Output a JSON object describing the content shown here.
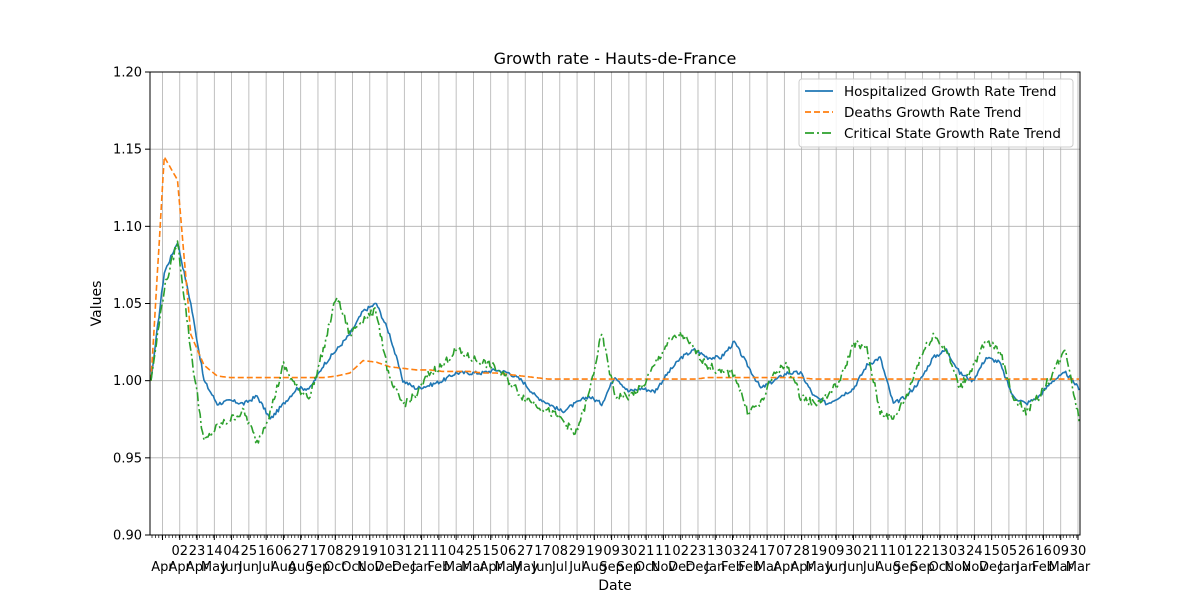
{
  "chart_data": {
    "type": "line",
    "title": "Growth rate - Hauts-de-France",
    "xlabel": "Date",
    "ylabel": "Values",
    "ylim": [
      0.9,
      1.2
    ],
    "yticks": [
      "0.90",
      "0.95",
      "1.00",
      "1.05",
      "1.10",
      "1.15",
      "1.20"
    ],
    "grid": true,
    "legend_position": "top-right",
    "x_tick_labels": [
      [
        "",
        "Apr"
      ],
      [
        "02",
        "Apr"
      ],
      [
        "23",
        "Apr"
      ],
      [
        "14",
        "May"
      ],
      [
        "04",
        "Jun"
      ],
      [
        "25",
        "Jun"
      ],
      [
        "16",
        "Jul"
      ],
      [
        "06",
        "Aug"
      ],
      [
        "27",
        "Aug"
      ],
      [
        "17",
        "Sep"
      ],
      [
        "08",
        "Oct"
      ],
      [
        "29",
        "Oct"
      ],
      [
        "19",
        "Nov"
      ],
      [
        "10",
        "Dec"
      ],
      [
        "31",
        "Dec"
      ],
      [
        "21",
        "Jan"
      ],
      [
        "11",
        "Feb"
      ],
      [
        "04",
        "Mar"
      ],
      [
        "25",
        "Mar"
      ],
      [
        "15",
        "Apr"
      ],
      [
        "06",
        "May"
      ],
      [
        "27",
        "May"
      ],
      [
        "17",
        "Jun"
      ],
      [
        "08",
        "Jul"
      ],
      [
        "29",
        "Jul"
      ],
      [
        "19",
        "Aug"
      ],
      [
        "09",
        "Sep"
      ],
      [
        "30",
        "Sep"
      ],
      [
        "21",
        "Oct"
      ],
      [
        "11",
        "Nov"
      ],
      [
        "02",
        "Dec"
      ],
      [
        "23",
        "Dec"
      ],
      [
        "13",
        "Jan"
      ],
      [
        "03",
        "Feb"
      ],
      [
        "24",
        "Feb"
      ],
      [
        "17",
        "Mar"
      ],
      [
        "07",
        "Apr"
      ],
      [
        "28",
        "Apr"
      ],
      [
        "19",
        "May"
      ],
      [
        "09",
        "Jun"
      ],
      [
        "30",
        "Jun"
      ],
      [
        "21",
        "Jul"
      ],
      [
        "11",
        "Aug"
      ],
      [
        "01",
        "Sep"
      ],
      [
        "22",
        "Sep"
      ],
      [
        "13",
        "Oct"
      ],
      [
        "03",
        "Nov"
      ],
      [
        "24",
        "Nov"
      ],
      [
        "15",
        "Dec"
      ],
      [
        "05",
        "Jan"
      ],
      [
        "26",
        "Jan"
      ],
      [
        "16",
        "Feb"
      ],
      [
        "09",
        "Mar"
      ],
      [
        "30",
        "Mar"
      ]
    ],
    "series": [
      {
        "name": "Hospitalized Growth Rate Trend",
        "color": "#1f77b4",
        "style": "solid",
        "values": [
          1.0,
          1.07,
          1.09,
          1.05,
          1.0,
          0.985,
          0.987,
          0.985,
          0.99,
          0.975,
          0.985,
          0.995,
          0.995,
          1.01,
          1.02,
          1.03,
          1.045,
          1.05,
          1.03,
          1.0,
          0.995,
          0.997,
          1.0,
          1.005,
          1.005,
          1.005,
          1.007,
          1.005,
          1.0,
          0.99,
          0.985,
          0.98,
          0.985,
          0.99,
          0.985,
          1.003,
          0.993,
          0.995,
          0.993,
          1.005,
          1.015,
          1.02,
          1.015,
          1.015,
          1.025,
          1.01,
          0.995,
          1.0,
          1.005,
          1.005,
          0.99,
          0.985,
          0.99,
          0.995,
          1.01,
          1.015,
          0.985,
          0.99,
          1.0,
          1.015,
          1.02,
          1.005,
          1.0,
          1.015,
          1.012,
          0.99,
          0.985,
          0.99,
          1.0,
          1.005,
          0.995
        ]
      },
      {
        "name": "Deaths Growth Rate Trend",
        "color": "#ff7f0e",
        "style": "dashed",
        "values": [
          1.0,
          1.145,
          1.13,
          1.03,
          1.01,
          1.003,
          1.002,
          1.002,
          1.002,
          1.002,
          1.002,
          1.002,
          1.002,
          1.002,
          1.003,
          1.005,
          1.013,
          1.012,
          1.009,
          1.008,
          1.007,
          1.007,
          1.006,
          1.006,
          1.006,
          1.005,
          1.005,
          1.004,
          1.003,
          1.002,
          1.001,
          1.001,
          1.001,
          1.001,
          1.001,
          1.001,
          1.001,
          1.001,
          1.001,
          1.001,
          1.001,
          1.001,
          1.002,
          1.002,
          1.002,
          1.002,
          1.002,
          1.002,
          1.002,
          1.002,
          1.001,
          1.001,
          1.001,
          1.001,
          1.001,
          1.001,
          1.001,
          1.001,
          1.001,
          1.001,
          1.001,
          1.001,
          1.001,
          1.001,
          1.001,
          1.001,
          1.001,
          1.001,
          1.001,
          1.001,
          1.001
        ]
      },
      {
        "name": "Critical State Growth Rate Trend",
        "color": "#2ca02c",
        "style": "dashdot",
        "values": [
          1.0,
          1.06,
          1.09,
          1.02,
          0.96,
          0.97,
          0.975,
          0.98,
          0.96,
          0.98,
          1.01,
          0.995,
          0.99,
          1.02,
          1.055,
          1.03,
          1.04,
          1.045,
          1.0,
          0.985,
          0.99,
          1.005,
          1.01,
          1.02,
          1.015,
          1.012,
          1.008,
          1.0,
          0.99,
          0.985,
          0.98,
          0.975,
          0.965,
          0.99,
          1.03,
          0.99,
          0.99,
          0.995,
          1.01,
          1.025,
          1.03,
          1.02,
          1.01,
          1.005,
          1.005,
          0.98,
          0.985,
          1.005,
          1.01,
          0.99,
          0.985,
          0.99,
          1.0,
          1.025,
          1.02,
          0.98,
          0.975,
          0.99,
          1.015,
          1.03,
          1.02,
          0.995,
          1.01,
          1.025,
          1.02,
          0.99,
          0.98,
          0.99,
          1.005,
          1.02,
          0.975
        ]
      }
    ]
  }
}
